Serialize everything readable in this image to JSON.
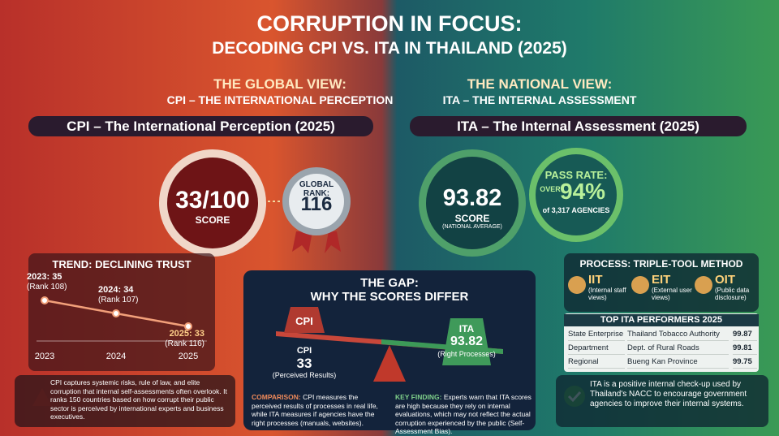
{
  "header": {
    "title": "CORRUPTION IN FOCUS:",
    "subtitle": "DECODING CPI VS. ITA IN THAILAND (2025)"
  },
  "global": {
    "heading": "THE GLOBAL VIEW:",
    "subheading": "CPI – THE INTERNATIONAL PERCEPTION",
    "banner": "CPI – The International Perception (2025)",
    "score": "33/100",
    "score_label": "SCORE",
    "rank_label": "GLOBAL RANK:",
    "rank": "116"
  },
  "trend": {
    "type": "line",
    "title": "TREND: DECLINING TRUST",
    "categories": [
      "2023",
      "2024",
      "2025"
    ],
    "values": [
      35,
      34,
      33
    ],
    "value_labels": [
      "2023: 35",
      "2024: 34",
      "2025: 33"
    ],
    "rank_labels": [
      "(Rank 108)",
      "(Rank 107)",
      "(Rank 116)"
    ],
    "color": "#f2a07a"
  },
  "global_note": "CPI captures systemic risks, rule of law, and elite corruption that internal self-assessments often overlook. It ranks 150 countries based on how corrupt their public sector is perceived by international experts and business executives.",
  "gap": {
    "title": "THE GAP:",
    "subtitle": "WHY THE SCORES DIFFER",
    "cpi_weight": "CPI",
    "cpi_name": "CPI",
    "cpi_score": "33",
    "cpi_caption": "(Perceived Results)",
    "ita_weight": "ITA",
    "ita_score": "93.82",
    "ita_caption": "(Right Processes)",
    "comparison_label": "COMPARISON:",
    "comparison": "CPI measures the perceived results of processes in real life, while ITA measures if agencies have the right processes (manuals, websites).",
    "finding_label": "KEY FINDING:",
    "finding": "Experts warn that ITA scores are high because they rely on internal evaluations, which may not reflect the actual corruption experienced by the public (Self-Assessment Bias)."
  },
  "national": {
    "heading": "THE NATIONAL VIEW:",
    "subheading": "ITA – THE INTERNAL ASSESSMENT",
    "banner": "ITA – The Internal Assessment (2025)",
    "score": "93.82",
    "score_label": "SCORE",
    "score_note": "(NATIONAL AVERAGE)",
    "pass_label": "PASS RATE:",
    "pass_prefix": "OVER",
    "pass_value": "94%",
    "pass_note": "of 3,317 AGENCIES"
  },
  "process": {
    "title": "PROCESS: TRIPLE-TOOL METHOD",
    "tools": [
      {
        "code": "IIT",
        "desc": "(Internal staff views)"
      },
      {
        "code": "EIT",
        "desc": "(External user views)"
      },
      {
        "code": "OIT",
        "desc": "(Public data disclosure)"
      }
    ]
  },
  "performers": {
    "title": "TOP ITA PERFORMERS 2025",
    "rows": [
      [
        "State Enterprise",
        "Thailand Tobacco Authority",
        "99.87"
      ],
      [
        "Department",
        "Dept. of Rural Roads",
        "99.81"
      ],
      [
        "Regional",
        "Bueng Kan Province",
        "99.75"
      ]
    ]
  },
  "national_note": "ITA is a positive internal check-up used by Thailand's NACC to encourage government agencies to improve their internal systems."
}
